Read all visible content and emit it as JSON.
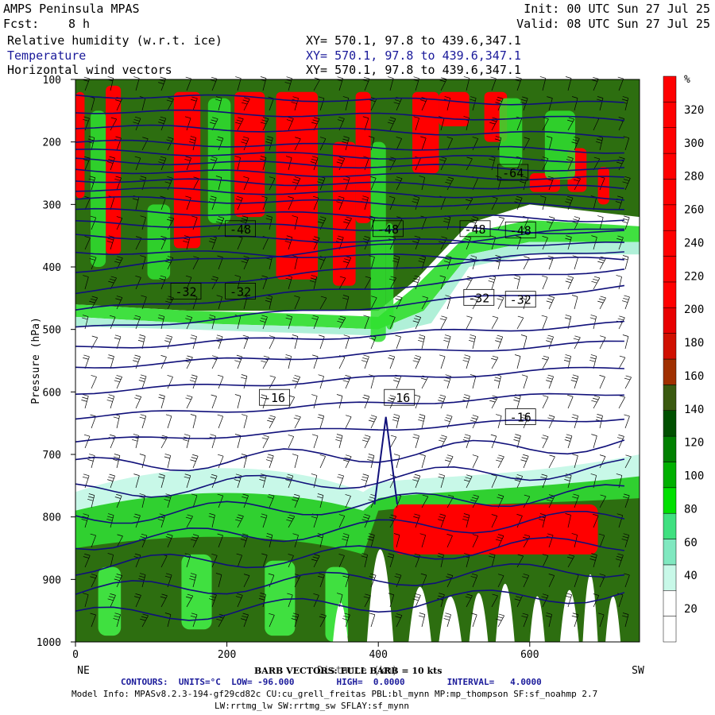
{
  "header": {
    "model": "AMPS Peninsula MPAS",
    "fcst_label": "Fcst:",
    "fcst_value": "8 h",
    "init": "Init: 00 UTC Sun 27 Jul 25",
    "valid": "Valid: 08 UTC Sun 27 Jul 25"
  },
  "fields": [
    {
      "name": "Relative humidity (w.r.t. ice)",
      "xy": "XY= 570.1, 97.8 to 439.6,347.1",
      "color": "#000000"
    },
    {
      "name": "Temperature",
      "xy": "XY= 570.1, 97.8 to 439.6,347.1",
      "color": "#000080"
    },
    {
      "name": "Horizontal wind vectors",
      "xy": "XY= 570.1, 97.8 to 439.6,347.1",
      "color": "#000000"
    }
  ],
  "footer": {
    "barb": "BARB VECTORS: FULL BARB = 10 kts",
    "contours": "CONTOURS:  UNITS=°C  LOW= -96.000        HIGH=  0.0000        INTERVAL=   4.0000",
    "model_info": "Model Info: MPASv8.2.3-194-gf29cd82c CU:cu_grell_freitas PBL:bl_mynn MP:mp_thompson SF:sf_noahmp 2.7",
    "model_info2": "LW:rrtmg_lw SW:rrtmg_sw SFLAY:sf_mynn"
  },
  "chart_data": {
    "type": "heatmap",
    "description_axes": "cross-section",
    "xlabel": "Distance (km)",
    "ylabel": "Pressure (hPa)",
    "xlim": [
      0,
      745
    ],
    "ylim": [
      1000,
      100
    ],
    "x_ticks": [
      0,
      200,
      400,
      600
    ],
    "y_ticks": [
      100,
      200,
      300,
      400,
      500,
      600,
      700,
      800,
      900,
      1000
    ],
    "left_end_label": "NE",
    "right_end_label": "SW",
    "colorbar": {
      "unit": "%",
      "labels": [
        20,
        40,
        60,
        80,
        100,
        120,
        140,
        160,
        180,
        200,
        220,
        240,
        260,
        280,
        300,
        320
      ],
      "colors": [
        "#ffffff",
        "#ffffff",
        "#c8f8e8",
        "#80e8c0",
        "#40e080",
        "#00e000",
        "#00b000",
        "#008000",
        "#005000",
        "#3a5a10",
        "#a03000",
        "#d01000",
        "#e80000",
        "#ff0000",
        "#ff0000",
        "#ff0000",
        "#ff0000",
        "#ff0000",
        "#ff0000",
        "#ff0000",
        "#ff0000",
        "#ff0000"
      ]
    },
    "temperature_contour_labels": [
      {
        "x": 560,
        "p": 250,
        "value": "-64"
      },
      {
        "x": 200,
        "p": 340,
        "value": "-48"
      },
      {
        "x": 395,
        "p": 340,
        "value": "-48"
      },
      {
        "x": 510,
        "p": 340,
        "value": "-48"
      },
      {
        "x": 570,
        "p": 342,
        "value": "-48"
      },
      {
        "x": 128,
        "p": 440,
        "value": "-32"
      },
      {
        "x": 200,
        "p": 440,
        "value": "-32"
      },
      {
        "x": 515,
        "p": 450,
        "value": "-32"
      },
      {
        "x": 570,
        "p": 453,
        "value": "-32"
      },
      {
        "x": 245,
        "p": 610,
        "value": "-16"
      },
      {
        "x": 410,
        "p": 610,
        "value": "-16"
      },
      {
        "x": 570,
        "p": 641,
        "value": "-16"
      }
    ]
  }
}
